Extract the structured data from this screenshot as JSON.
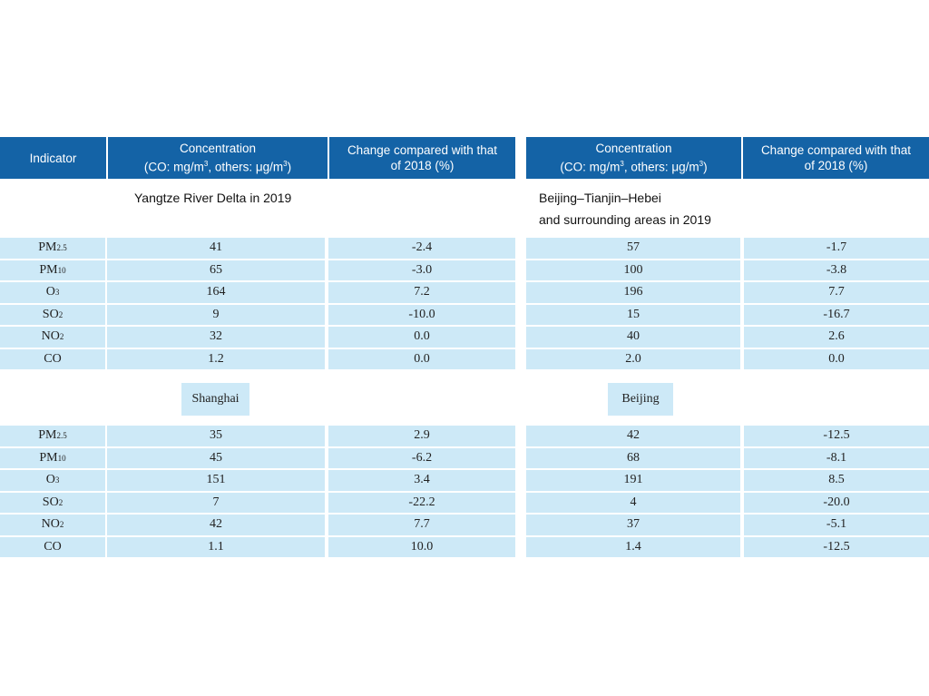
{
  "header": {
    "indicator": "Indicator",
    "concentration": {
      "title": "Concentration",
      "unit": [
        {
          "text": "(CO: mg/m",
          "sup": "3"
        },
        {
          "text": ", others: μg/m",
          "sup": "3"
        },
        {
          "text": ")"
        }
      ]
    },
    "change": [
      "Change compared with that",
      "of 2018 (%)"
    ]
  },
  "left": {
    "region": [
      "Yangtze River Delta in 2019"
    ],
    "rows": [
      {
        "indicator": {
          "base": "PM",
          "sub": "2.5"
        },
        "concentration": "41",
        "change": "-2.4"
      },
      {
        "indicator": {
          "base": "PM",
          "sub": "10"
        },
        "concentration": "65",
        "change": "-3.0"
      },
      {
        "indicator": {
          "base": "O",
          "sub": "3"
        },
        "concentration": "164",
        "change": "7.2"
      },
      {
        "indicator": {
          "base": "SO",
          "sub": "2"
        },
        "concentration": "9",
        "change": "-10.0"
      },
      {
        "indicator": {
          "base": "NO",
          "sub": "2"
        },
        "concentration": "32",
        "change": "0.0"
      },
      {
        "indicator": {
          "base": "CO"
        },
        "concentration": "1.2",
        "change": "0.0"
      }
    ],
    "city": "Shanghai",
    "city_rows": [
      {
        "indicator": {
          "base": "PM",
          "sub": "2.5"
        },
        "concentration": "35",
        "change": "2.9"
      },
      {
        "indicator": {
          "base": "PM",
          "sub": "10"
        },
        "concentration": "45",
        "change": "-6.2"
      },
      {
        "indicator": {
          "base": "O",
          "sub": "3"
        },
        "concentration": "151",
        "change": "3.4"
      },
      {
        "indicator": {
          "base": "SO",
          "sub": "2"
        },
        "concentration": "7",
        "change": "-22.2"
      },
      {
        "indicator": {
          "base": "NO",
          "sub": "2"
        },
        "concentration": "42",
        "change": "7.7"
      },
      {
        "indicator": {
          "base": "CO"
        },
        "concentration": "1.1",
        "change": "10.0"
      }
    ]
  },
  "right": {
    "region": [
      "Beijing–Tianjin–Hebei",
      "and surrounding areas in 2019"
    ],
    "rows": [
      {
        "concentration": "57",
        "change": "-1.7"
      },
      {
        "concentration": "100",
        "change": "-3.8"
      },
      {
        "concentration": "196",
        "change": "7.7"
      },
      {
        "concentration": "15",
        "change": "-16.7"
      },
      {
        "concentration": "40",
        "change": "2.6"
      },
      {
        "concentration": "2.0",
        "change": "0.0"
      }
    ],
    "city": "Beijing",
    "city_rows": [
      {
        "concentration": "42",
        "change": "-12.5"
      },
      {
        "concentration": "68",
        "change": "-8.1"
      },
      {
        "concentration": "191",
        "change": "8.5"
      },
      {
        "concentration": "4",
        "change": "-20.0"
      },
      {
        "concentration": "37",
        "change": "-5.1"
      },
      {
        "concentration": "1.4",
        "change": "-12.5"
      }
    ]
  }
}
